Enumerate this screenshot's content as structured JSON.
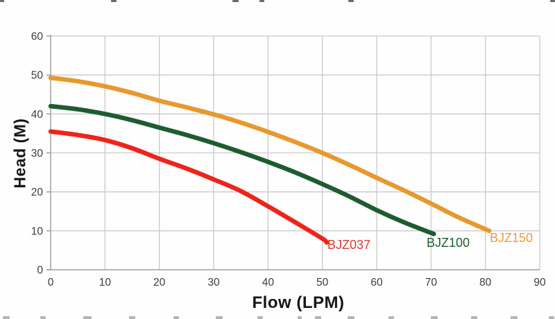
{
  "chart_data": {
    "type": "line",
    "title": "",
    "xlabel": "Flow (LPM)",
    "ylabel": "Head (M)",
    "xlim": [
      0,
      90
    ],
    "ylim": [
      0,
      60
    ],
    "xticks": [
      0,
      10,
      20,
      30,
      40,
      50,
      60,
      70,
      80,
      90
    ],
    "yticks": [
      0,
      10,
      20,
      30,
      40,
      50,
      60
    ],
    "grid": true,
    "legend_position": "inline-curve-end-labels",
    "series": [
      {
        "name": "BJZ037",
        "color": "#ee2419",
        "label_color": "#da3b34",
        "x": [
          0,
          5,
          10,
          15,
          20,
          25,
          30,
          35,
          40,
          45,
          50,
          50.8
        ],
        "y": [
          35.5,
          34.6,
          33.3,
          31.2,
          28.5,
          26.0,
          23.2,
          20.2,
          16.3,
          12.2,
          8.0,
          7.0
        ]
      },
      {
        "name": "BJZ100",
        "color": "#1d5c30",
        "label_color": "#1d5c30",
        "x": [
          0,
          5,
          10,
          15,
          20,
          25,
          30,
          35,
          40,
          45,
          50,
          55,
          60,
          65,
          70.5
        ],
        "y": [
          42.0,
          41.2,
          40.0,
          38.4,
          36.5,
          34.6,
          32.5,
          30.2,
          27.7,
          25.0,
          22.0,
          18.8,
          15.3,
          12.2,
          9.2
        ]
      },
      {
        "name": "BJZ150",
        "color": "#e8982f",
        "label_color": "#ef9c3a",
        "x": [
          0,
          5,
          10,
          15,
          20,
          25,
          30,
          35,
          40,
          45,
          50,
          55,
          60,
          65,
          70,
          75,
          80.7
        ],
        "y": [
          49.3,
          48.4,
          47.1,
          45.4,
          43.4,
          41.7,
          39.9,
          37.8,
          35.4,
          32.8,
          30.0,
          26.9,
          23.6,
          20.4,
          17.0,
          13.5,
          10.0
        ]
      }
    ]
  },
  "styles": {
    "background": "#fefefe",
    "grid_color": "#c9c9c9",
    "axis_color": "#9d9d9d",
    "tick_text_color": "#3c3c3c",
    "title_text_color": "#161616",
    "curve_stroke_width": 6.5
  },
  "edge_artifacts": {
    "top_marks": [
      [
        0,
        6
      ],
      [
        160,
        8
      ],
      [
        335,
        9
      ],
      [
        374,
        7
      ],
      [
        502,
        8
      ],
      [
        793,
        7
      ]
    ],
    "top_color": "#4f4f4f",
    "bottom_marks": [
      [
        4,
        10
      ],
      [
        58,
        8
      ],
      [
        120,
        12
      ],
      [
        186,
        9
      ],
      [
        250,
        8
      ],
      [
        311,
        10
      ],
      [
        371,
        8
      ],
      [
        429,
        6
      ],
      [
        454,
        9
      ],
      [
        501,
        10
      ],
      [
        560,
        8
      ],
      [
        621,
        10
      ],
      [
        679,
        9
      ],
      [
        736,
        10
      ],
      [
        791,
        8
      ]
    ],
    "bottom_color": "#9a9a9a"
  }
}
